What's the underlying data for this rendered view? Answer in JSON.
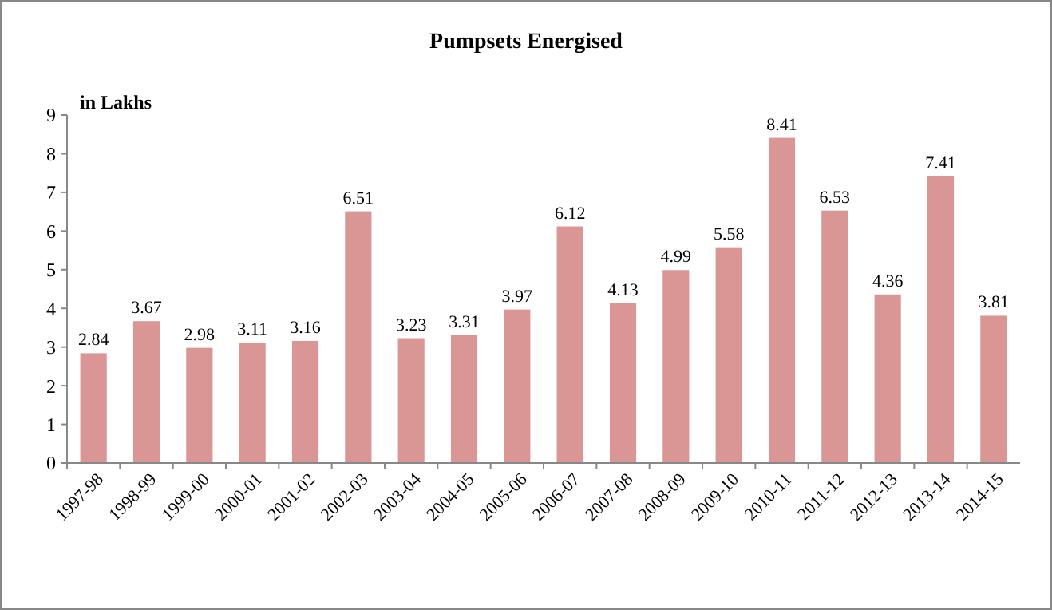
{
  "chart_data": {
    "type": "bar",
    "title": "Pumpsets Energised",
    "ylabel": "in Lakhs",
    "categories": [
      "1997-98",
      "1998-99",
      "1999-00",
      "2000-01",
      "2001-02",
      "2002-03",
      "2003-04",
      "2004-05",
      "2005-06",
      "2006-07",
      "2007-08",
      "2008-09",
      "2009-10",
      "2010-11",
      "2011-12",
      "2012-13",
      "2013-14",
      "2014-15"
    ],
    "values": [
      2.84,
      3.67,
      2.98,
      3.11,
      3.16,
      6.51,
      3.23,
      3.31,
      3.97,
      6.12,
      4.13,
      4.99,
      5.58,
      8.41,
      6.53,
      4.36,
      7.41,
      3.81
    ],
    "color": "#d99694",
    "ylim": [
      0,
      9
    ],
    "yticks": [
      0,
      1,
      2,
      3,
      4,
      5,
      6,
      7,
      8,
      9
    ],
    "grid": false,
    "data_labels": true
  }
}
